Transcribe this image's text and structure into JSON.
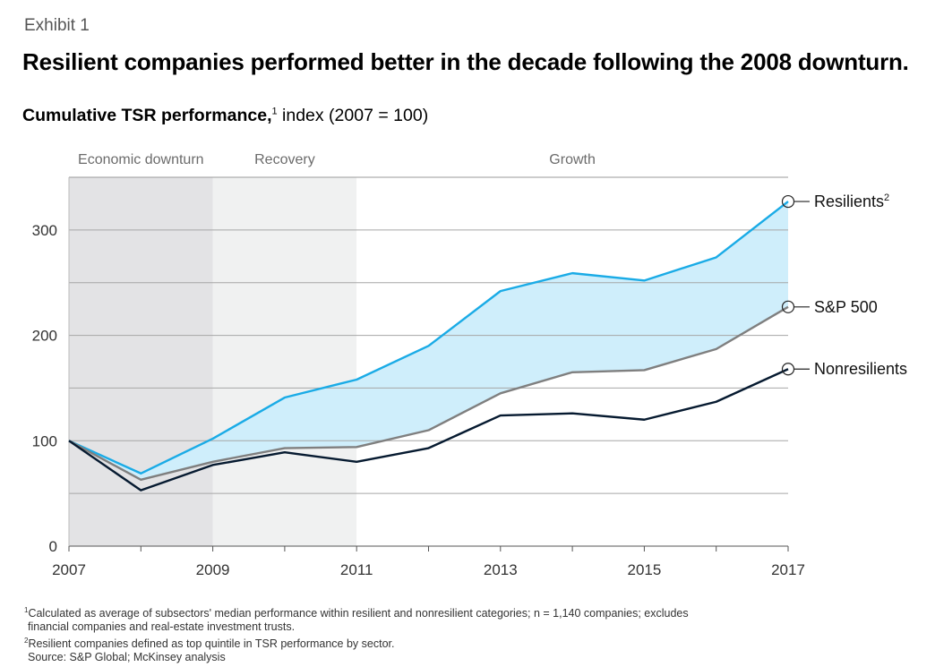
{
  "exhibit_label": "Exhibit 1",
  "title": "Resilient companies performed better in the decade following the 2008 downturn.",
  "subtitle_bold": "Cumulative TSR performance,",
  "subtitle_sup": "1",
  "subtitle_rest": " index (2007 = 100)",
  "phases": [
    {
      "label": "Economic downturn",
      "start": 2007,
      "end": 2009,
      "color": "#e3e3e5"
    },
    {
      "label": "Recovery",
      "start": 2009,
      "end": 2011,
      "color": "#f0f1f1"
    },
    {
      "label": "Growth",
      "start": 2011,
      "end": 2017,
      "color": "#ffffff"
    }
  ],
  "chart_data": {
    "type": "line",
    "x": [
      2007,
      2008,
      2009,
      2010,
      2011,
      2012,
      2013,
      2014,
      2015,
      2016,
      2017
    ],
    "series": [
      {
        "name": "Resilients",
        "label": "Resilients",
        "sup": "2",
        "color": "#1aabe6",
        "values": [
          100,
          69,
          102,
          141,
          158,
          190,
          242,
          259,
          252,
          274,
          327
        ]
      },
      {
        "name": "S&P 500",
        "label": "S&P 500",
        "sup": "",
        "color": "#7f7f7f",
        "values": [
          100,
          63,
          80,
          93,
          94,
          110,
          145,
          165,
          167,
          187,
          227
        ]
      },
      {
        "name": "Nonresilients",
        "label": "Nonresilients",
        "sup": "",
        "color": "#061a30",
        "values": [
          100,
          53,
          77,
          89,
          80,
          93,
          124,
          126,
          120,
          137,
          168
        ]
      }
    ],
    "fill_between": {
      "upper": "Resilients",
      "lower": "S&P 500",
      "color": "#cfeefb"
    },
    "xticks": [
      2007,
      2009,
      2011,
      2013,
      2015,
      2017
    ],
    "yticks": [
      0,
      100,
      200,
      300
    ],
    "gridlines": [
      50,
      100,
      150,
      200,
      250,
      300
    ],
    "xlim": [
      2007,
      2017
    ],
    "ylim": [
      0,
      350
    ]
  },
  "footnotes": {
    "note1_sup": "1",
    "note1_line1": "Calculated as average of subsectors' median performance within resilient and nonresilient categories; n = 1,140 companies; excludes",
    "note1_line2": "financial companies and real-estate investment trusts.",
    "note2_sup": "2",
    "note2": "Resilient companies defined as top quintile in TSR performance by sector.",
    "source": "Source: S&P Global; McKinsey analysis"
  }
}
